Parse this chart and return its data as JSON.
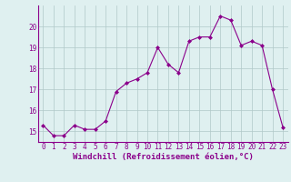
{
  "x": [
    0,
    1,
    2,
    3,
    4,
    5,
    6,
    7,
    8,
    9,
    10,
    11,
    12,
    13,
    14,
    15,
    16,
    17,
    18,
    19,
    20,
    21,
    22,
    23
  ],
  "y": [
    15.3,
    14.8,
    14.8,
    15.3,
    15.1,
    15.1,
    15.5,
    16.9,
    17.3,
    17.5,
    17.8,
    19.0,
    18.2,
    17.8,
    19.3,
    19.5,
    19.5,
    20.5,
    20.3,
    19.1,
    19.3,
    19.1,
    17.0,
    15.2
  ],
  "line_color": "#8B008B",
  "marker": "D",
  "marker_size": 2.0,
  "bg_color": "#dff0f0",
  "grid_color": "#b0c8c8",
  "xlabel": "Windchill (Refroidissement éolien,°C)",
  "ylim": [
    14.5,
    21.0
  ],
  "xlim": [
    -0.5,
    23.5
  ],
  "yticks": [
    15,
    16,
    17,
    18,
    19,
    20
  ],
  "xticks": [
    0,
    1,
    2,
    3,
    4,
    5,
    6,
    7,
    8,
    9,
    10,
    11,
    12,
    13,
    14,
    15,
    16,
    17,
    18,
    19,
    20,
    21,
    22,
    23
  ],
  "xtick_labels": [
    "0",
    "1",
    "2",
    "3",
    "4",
    "5",
    "6",
    "7",
    "8",
    "9",
    "10",
    "11",
    "12",
    "13",
    "14",
    "15",
    "16",
    "17",
    "18",
    "19",
    "20",
    "21",
    "22",
    "23"
  ],
  "tick_fontsize": 5.5,
  "xlabel_fontsize": 6.5,
  "linewidth": 0.8
}
